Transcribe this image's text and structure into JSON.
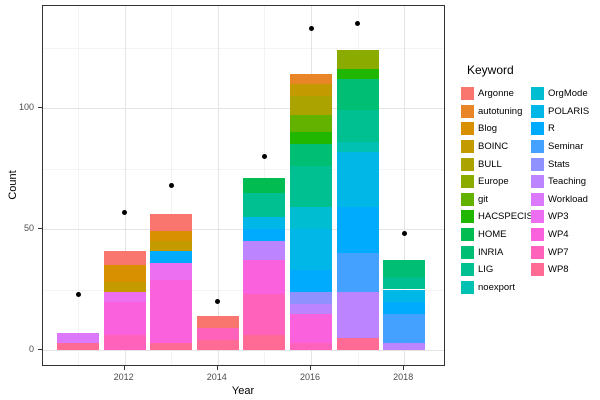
{
  "chart_data": {
    "type": "bar",
    "subtype": "stacked-bars-with-points",
    "title": "",
    "xlabel": "Year",
    "ylabel": "Count",
    "legend_title": "Keyword",
    "legend_position": "right",
    "grid": "major+minor",
    "x_major_ticks": [
      2012,
      2014,
      2016,
      2018
    ],
    "x_minor_gridlines": [
      2011,
      2013,
      2015,
      2017
    ],
    "y_major_ticks": [
      0,
      50,
      100
    ],
    "y_minor_gridlines": [
      25,
      75,
      125
    ],
    "ylim": [
      -7,
      144
    ],
    "point_color": "#000000",
    "panel_border_color": "#333333",
    "major_grid_color": "#E4E4E4",
    "minor_grid_color": "#F3F3F3",
    "tick_label_color": "#4D4D4D",
    "keywords": [
      {
        "name": "Argonne",
        "color": "#F8766D"
      },
      {
        "name": "autotuning",
        "color": "#E88526"
      },
      {
        "name": "Blog",
        "color": "#D89000"
      },
      {
        "name": "BOINC",
        "color": "#C39B00"
      },
      {
        "name": "BULL",
        "color": "#ABA300"
      },
      {
        "name": "Europe",
        "color": "#8CAB00"
      },
      {
        "name": "git",
        "color": "#64B200"
      },
      {
        "name": "HACSPECIS",
        "color": "#21B700"
      },
      {
        "name": "HOME",
        "color": "#00BC51"
      },
      {
        "name": "INRIA",
        "color": "#00BF74"
      },
      {
        "name": "LIG",
        "color": "#00C092"
      },
      {
        "name": "noexport",
        "color": "#00C1B2"
      },
      {
        "name": "OrgMode",
        "color": "#00BDD2"
      },
      {
        "name": "POLARIS",
        "color": "#00B7E8"
      },
      {
        "name": "R",
        "color": "#00ABFD"
      },
      {
        "name": "Seminar",
        "color": "#45A1FF"
      },
      {
        "name": "Stats",
        "color": "#8F91FF"
      },
      {
        "name": "Teaching",
        "color": "#BC85FF"
      },
      {
        "name": "Workload",
        "color": "#DC78FB"
      },
      {
        "name": "WP3",
        "color": "#EC6EF1"
      },
      {
        "name": "WP4",
        "color": "#F962DC"
      },
      {
        "name": "WP7",
        "color": "#FF62BB"
      },
      {
        "name": "WP8",
        "color": "#FF6B94"
      }
    ],
    "bars": [
      {
        "year": 2011,
        "total": 7,
        "segments": [
          {
            "keyword": "WP8",
            "value": 3
          },
          {
            "keyword": "Workload",
            "value": 4
          }
        ]
      },
      {
        "year": 2012,
        "total": 41,
        "segments": [
          {
            "keyword": "WP7",
            "value": 6
          },
          {
            "keyword": "WP4",
            "value": 14
          },
          {
            "keyword": "WP3",
            "value": 4
          },
          {
            "keyword": "BOINC",
            "value": 4
          },
          {
            "keyword": "Blog",
            "value": 7
          },
          {
            "keyword": "Argonne",
            "value": 6
          }
        ]
      },
      {
        "year": 2013,
        "total": 56,
        "segments": [
          {
            "keyword": "WP8",
            "value": 3
          },
          {
            "keyword": "WP4",
            "value": 26
          },
          {
            "keyword": "WP3",
            "value": 7
          },
          {
            "keyword": "R",
            "value": 5
          },
          {
            "keyword": "BOINC",
            "value": 4
          },
          {
            "keyword": "Blog",
            "value": 4
          },
          {
            "keyword": "Argonne",
            "value": 7
          }
        ]
      },
      {
        "year": 2014,
        "total": 14,
        "segments": [
          {
            "keyword": "WP8",
            "value": 4
          },
          {
            "keyword": "WP7",
            "value": 5
          },
          {
            "keyword": "Argonne",
            "value": 5
          }
        ]
      },
      {
        "year": 2015,
        "total": 71,
        "segments": [
          {
            "keyword": "WP8",
            "value": 6
          },
          {
            "keyword": "WP7",
            "value": 17
          },
          {
            "keyword": "WP4",
            "value": 14
          },
          {
            "keyword": "Teaching",
            "value": 8
          },
          {
            "keyword": "R",
            "value": 5
          },
          {
            "keyword": "POLARIS",
            "value": 5
          },
          {
            "keyword": "LIG",
            "value": 10
          },
          {
            "keyword": "HOME",
            "value": 6
          }
        ]
      },
      {
        "year": 2016,
        "total": 114,
        "segments": [
          {
            "keyword": "WP7",
            "value": 3
          },
          {
            "keyword": "WP4",
            "value": 12
          },
          {
            "keyword": "Teaching",
            "value": 4
          },
          {
            "keyword": "Stats",
            "value": 5
          },
          {
            "keyword": "R",
            "value": 9
          },
          {
            "keyword": "POLARIS",
            "value": 17
          },
          {
            "keyword": "OrgMode",
            "value": 9
          },
          {
            "keyword": "LIG",
            "value": 17
          },
          {
            "keyword": "INRIA",
            "value": 9
          },
          {
            "keyword": "HACSPECIS",
            "value": 5
          },
          {
            "keyword": "git",
            "value": 7
          },
          {
            "keyword": "BULL",
            "value": 8
          },
          {
            "keyword": "BOINC",
            "value": 5
          },
          {
            "keyword": "autotuning",
            "value": 4
          }
        ]
      },
      {
        "year": 2017,
        "total": 124,
        "segments": [
          {
            "keyword": "WP8",
            "value": 5
          },
          {
            "keyword": "Teaching",
            "value": 19
          },
          {
            "keyword": "Seminar",
            "value": 16
          },
          {
            "keyword": "R",
            "value": 19
          },
          {
            "keyword": "POLARIS",
            "value": 23
          },
          {
            "keyword": "noexport",
            "value": 4
          },
          {
            "keyword": "LIG",
            "value": 13
          },
          {
            "keyword": "INRIA",
            "value": 13
          },
          {
            "keyword": "HACSPECIS",
            "value": 4
          },
          {
            "keyword": "Europe",
            "value": 8
          }
        ]
      },
      {
        "year": 2018,
        "total": 37,
        "segments": [
          {
            "keyword": "Teaching",
            "value": 3
          },
          {
            "keyword": "Seminar",
            "value": 12
          },
          {
            "keyword": "R",
            "value": 5
          },
          {
            "keyword": "POLARIS",
            "value": 5
          },
          {
            "keyword": "LIG",
            "value": 5
          },
          {
            "keyword": "INRIA",
            "value": 7
          }
        ]
      }
    ],
    "points": [
      {
        "year": 2011,
        "value": 23
      },
      {
        "year": 2012,
        "value": 57
      },
      {
        "year": 2013,
        "value": 68
      },
      {
        "year": 2014,
        "value": 20
      },
      {
        "year": 2015,
        "value": 80
      },
      {
        "year": 2016,
        "value": 133
      },
      {
        "year": 2017,
        "value": 135
      },
      {
        "year": 2018,
        "value": 48
      }
    ]
  }
}
